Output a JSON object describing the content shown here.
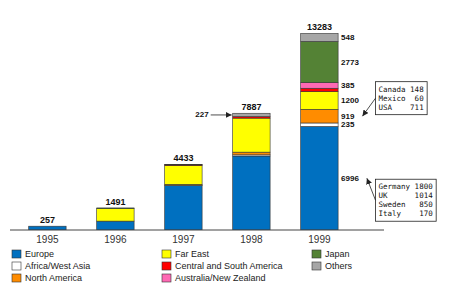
{
  "chart_data": {
    "type": "bar",
    "stacked": true,
    "categories": [
      "1995",
      "1996",
      "1997",
      "1998",
      "1999"
    ],
    "series": [
      {
        "name": "Europe",
        "color": "#0070C0",
        "values": [
          257,
          600,
          3000,
          5000,
          6996
        ],
        "value_labels": [
          null,
          null,
          null,
          null,
          "6996"
        ]
      },
      {
        "name": "Africa/West Asia",
        "color": "#FFFFFF",
        "values": [
          0,
          0,
          30,
          80,
          235
        ],
        "value_labels": [
          null,
          null,
          null,
          null,
          "235"
        ]
      },
      {
        "name": "North America",
        "color": "#FF8C00",
        "values": [
          0,
          0,
          50,
          180,
          919
        ],
        "value_labels": [
          null,
          null,
          null,
          null,
          "919"
        ]
      },
      {
        "name": "Far East",
        "color": "#FFFF00",
        "values": [
          0,
          840,
          1280,
          2300,
          1200
        ],
        "value_labels": [
          null,
          null,
          null,
          null,
          "1200"
        ]
      },
      {
        "name": "Central and South America",
        "color": "#FF0000",
        "values": [
          0,
          0,
          33,
          100,
          227
        ]
      },
      {
        "name": "Australia/New Zealand",
        "color": "#FF69B4",
        "values": [
          0,
          0,
          33,
          0,
          385
        ],
        "value_labels": [
          null,
          null,
          null,
          null,
          "385"
        ]
      },
      {
        "name": "Japan",
        "color": "#548235",
        "values": [
          0,
          51,
          7,
          0,
          2773
        ],
        "value_labels": [
          null,
          null,
          null,
          null,
          "2773"
        ]
      },
      {
        "name": "Others",
        "color": "#A6A6A6",
        "values": [
          0,
          0,
          0,
          227,
          548
        ],
        "value_labels": [
          null,
          null,
          null,
          "227",
          "548"
        ]
      }
    ],
    "totals": [
      257,
      1491,
      4433,
      7887,
      13283
    ],
    "annotations": [
      {
        "text": "Canada 148\nMexico  60\nUSA    711",
        "series": "North America",
        "category": "1999"
      },
      {
        "text": "Germany 1800\nUK      1014\nSweden   850\nItaly    170",
        "series": "Europe",
        "category": "1999"
      }
    ],
    "ylim": [
      0,
      15000
    ],
    "yticks": [],
    "tick_labels": "x",
    "grid": false,
    "legend": "bottom"
  }
}
